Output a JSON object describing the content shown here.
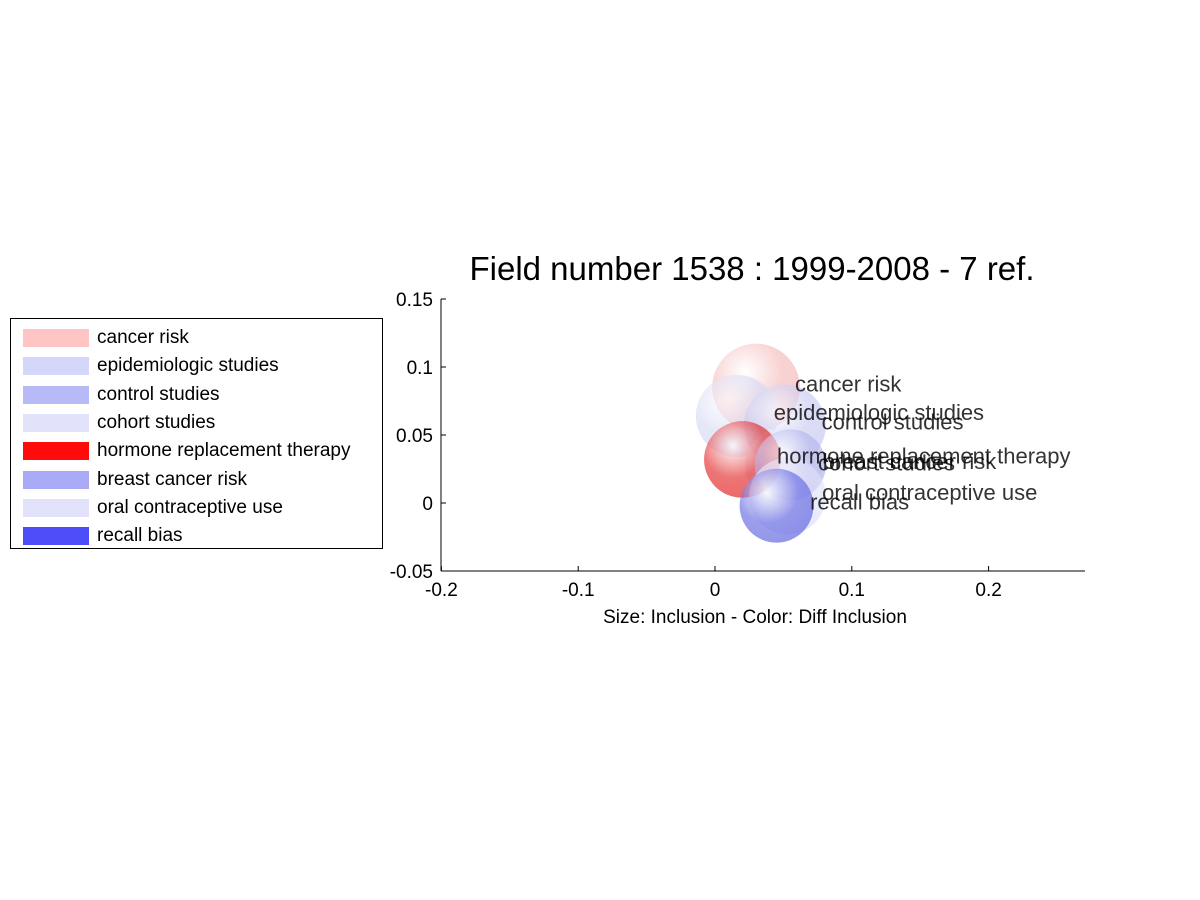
{
  "chart_data": {
    "type": "scatter",
    "title": "Field number 1538 : 1999-2008  - 7 ref.",
    "xlabel": "Size: Inclusion - Color: Diff Inclusion",
    "ylabel": "",
    "xlim": [
      -0.2,
      0.27
    ],
    "ylim": [
      -0.05,
      0.15
    ],
    "xticks": [
      -0.2,
      -0.1,
      0,
      0.1,
      0.2
    ],
    "yticks": [
      -0.05,
      0,
      0.05,
      0.1,
      0.15
    ],
    "xtick_labels": [
      "-0.2",
      "-0.1",
      "0",
      "0.1",
      "0.2"
    ],
    "ytick_labels": [
      "-0.05",
      "0",
      "0.05",
      "0.1",
      "0.15"
    ],
    "grid": false,
    "legend_position": "left",
    "points": [
      {
        "label": "cancer risk",
        "x": 0.03,
        "y": 0.085,
        "size": 0.032,
        "color": "#f4b7b7"
      },
      {
        "label": "epidemiologic studies",
        "x": 0.016,
        "y": 0.064,
        "size": 0.03,
        "color": "#d4d8f4"
      },
      {
        "label": "control studies",
        "x": 0.051,
        "y": 0.057,
        "size": 0.03,
        "color": "#c5c8f2"
      },
      {
        "label": "cohort studies",
        "x": 0.05,
        "y": 0.027,
        "size": 0.028,
        "color": "#e2e4f7"
      },
      {
        "label": "hormone replacement therapy",
        "x": 0.02,
        "y": 0.032,
        "size": 0.028,
        "color": "#e21f1f"
      },
      {
        "label": "breast cancer risk",
        "x": 0.055,
        "y": 0.028,
        "size": 0.026,
        "color": "#b0b2ec"
      },
      {
        "label": "oral contraceptive use",
        "x": 0.053,
        "y": 0.005,
        "size": 0.028,
        "color": "#dfe1f7"
      },
      {
        "label": "recall bias",
        "x": 0.045,
        "y": -0.002,
        "size": 0.027,
        "color": "#5f63e0"
      }
    ],
    "legend": [
      {
        "label": "cancer risk",
        "color": "#ffc4c4"
      },
      {
        "label": "epidemiologic studies",
        "color": "#d4d6fa"
      },
      {
        "label": "control studies",
        "color": "#b8baf8"
      },
      {
        "label": "cohort studies",
        "color": "#e2e3fb"
      },
      {
        "label": "hormone replacement therapy",
        "color": "#ff0b0b"
      },
      {
        "label": "breast cancer risk",
        "color": "#a9abf6"
      },
      {
        "label": "oral contraceptive use",
        "color": "#e2e3fb"
      },
      {
        "label": "recall bias",
        "color": "#4d4df7"
      }
    ]
  }
}
